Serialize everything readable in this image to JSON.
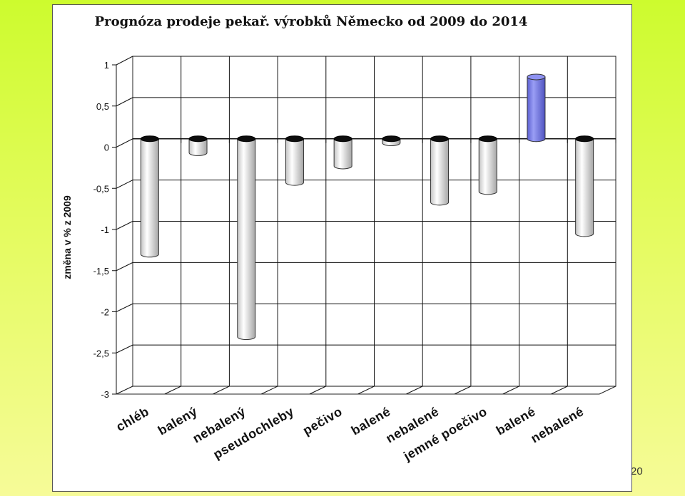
{
  "slide": {
    "page_number": "20",
    "colors": {
      "background_top": "#cdfb2e",
      "background_bottom": "#f6fb98",
      "panel": "#ffffff"
    }
  },
  "chart_data": {
    "type": "bar",
    "title": "Prognóza prodeje pekař. výrobků Německo od 2009 do 2014",
    "ylabel": "změna v  % z 2009",
    "xlabel": "",
    "ylim": [
      -3,
      1
    ],
    "yticks": [
      1,
      0.5,
      0,
      -0.5,
      -1,
      -1.5,
      -2,
      -2.5,
      -3
    ],
    "ytick_labels": [
      "1",
      "0,5",
      "0",
      "-0,5",
      "-1",
      "-1,5",
      "-2",
      "-2,5",
      "-3"
    ],
    "categories": [
      "chléb",
      "balený",
      "nebalený",
      "pseudochleby",
      "pečivo",
      "balené",
      "nebalené",
      "jemné poečivo",
      "balené",
      "nebalené"
    ],
    "values": [
      -1.4,
      -0.17,
      -2.4,
      -0.53,
      -0.33,
      -0.05,
      -0.77,
      -0.64,
      0.75,
      -1.15
    ],
    "bar_colors": [
      "#e6e6e6",
      "#e6e6e6",
      "#e6e6e6",
      "#e6e6e6",
      "#e6e6e6",
      "#e6e6e6",
      "#e6e6e6",
      "#e6e6e6",
      "#7b7fe8",
      "#e6e6e6"
    ],
    "grid": true,
    "legend": "none",
    "style": "3d-cylinder"
  }
}
